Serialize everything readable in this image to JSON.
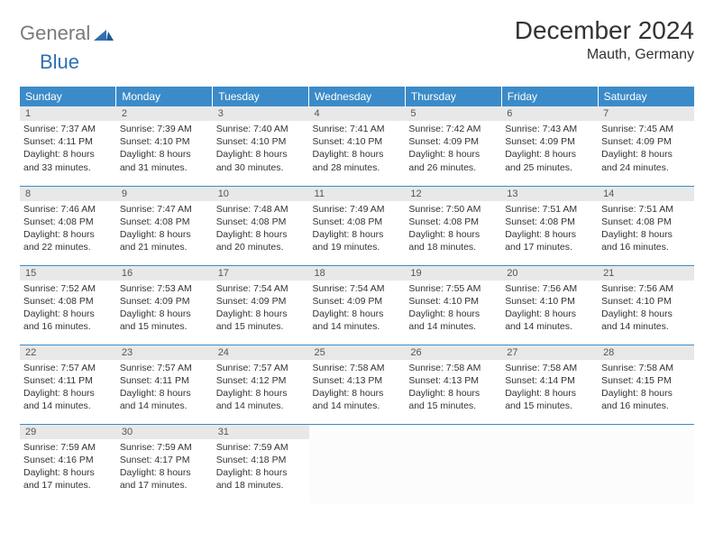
{
  "logo": {
    "gray": "General",
    "blue": "Blue"
  },
  "title": "December 2024",
  "location": "Mauth, Germany",
  "colors": {
    "header_bg": "#3b8bc9",
    "header_text": "#ffffff",
    "row_border": "#3b8bc9",
    "daynum_bg": "#e8e8e8",
    "logo_gray": "#7a7a7a",
    "logo_blue": "#2f6fb0"
  },
  "weekdays": [
    "Sunday",
    "Monday",
    "Tuesday",
    "Wednesday",
    "Thursday",
    "Friday",
    "Saturday"
  ],
  "weeks": [
    [
      {
        "n": 1,
        "sr": "7:37 AM",
        "ss": "4:11 PM",
        "dl": "8 hours and 33 minutes."
      },
      {
        "n": 2,
        "sr": "7:39 AM",
        "ss": "4:10 PM",
        "dl": "8 hours and 31 minutes."
      },
      {
        "n": 3,
        "sr": "7:40 AM",
        "ss": "4:10 PM",
        "dl": "8 hours and 30 minutes."
      },
      {
        "n": 4,
        "sr": "7:41 AM",
        "ss": "4:10 PM",
        "dl": "8 hours and 28 minutes."
      },
      {
        "n": 5,
        "sr": "7:42 AM",
        "ss": "4:09 PM",
        "dl": "8 hours and 26 minutes."
      },
      {
        "n": 6,
        "sr": "7:43 AM",
        "ss": "4:09 PM",
        "dl": "8 hours and 25 minutes."
      },
      {
        "n": 7,
        "sr": "7:45 AM",
        "ss": "4:09 PM",
        "dl": "8 hours and 24 minutes."
      }
    ],
    [
      {
        "n": 8,
        "sr": "7:46 AM",
        "ss": "4:08 PM",
        "dl": "8 hours and 22 minutes."
      },
      {
        "n": 9,
        "sr": "7:47 AM",
        "ss": "4:08 PM",
        "dl": "8 hours and 21 minutes."
      },
      {
        "n": 10,
        "sr": "7:48 AM",
        "ss": "4:08 PM",
        "dl": "8 hours and 20 minutes."
      },
      {
        "n": 11,
        "sr": "7:49 AM",
        "ss": "4:08 PM",
        "dl": "8 hours and 19 minutes."
      },
      {
        "n": 12,
        "sr": "7:50 AM",
        "ss": "4:08 PM",
        "dl": "8 hours and 18 minutes."
      },
      {
        "n": 13,
        "sr": "7:51 AM",
        "ss": "4:08 PM",
        "dl": "8 hours and 17 minutes."
      },
      {
        "n": 14,
        "sr": "7:51 AM",
        "ss": "4:08 PM",
        "dl": "8 hours and 16 minutes."
      }
    ],
    [
      {
        "n": 15,
        "sr": "7:52 AM",
        "ss": "4:08 PM",
        "dl": "8 hours and 16 minutes."
      },
      {
        "n": 16,
        "sr": "7:53 AM",
        "ss": "4:09 PM",
        "dl": "8 hours and 15 minutes."
      },
      {
        "n": 17,
        "sr": "7:54 AM",
        "ss": "4:09 PM",
        "dl": "8 hours and 15 minutes."
      },
      {
        "n": 18,
        "sr": "7:54 AM",
        "ss": "4:09 PM",
        "dl": "8 hours and 14 minutes."
      },
      {
        "n": 19,
        "sr": "7:55 AM",
        "ss": "4:10 PM",
        "dl": "8 hours and 14 minutes."
      },
      {
        "n": 20,
        "sr": "7:56 AM",
        "ss": "4:10 PM",
        "dl": "8 hours and 14 minutes."
      },
      {
        "n": 21,
        "sr": "7:56 AM",
        "ss": "4:10 PM",
        "dl": "8 hours and 14 minutes."
      }
    ],
    [
      {
        "n": 22,
        "sr": "7:57 AM",
        "ss": "4:11 PM",
        "dl": "8 hours and 14 minutes."
      },
      {
        "n": 23,
        "sr": "7:57 AM",
        "ss": "4:11 PM",
        "dl": "8 hours and 14 minutes."
      },
      {
        "n": 24,
        "sr": "7:57 AM",
        "ss": "4:12 PM",
        "dl": "8 hours and 14 minutes."
      },
      {
        "n": 25,
        "sr": "7:58 AM",
        "ss": "4:13 PM",
        "dl": "8 hours and 14 minutes."
      },
      {
        "n": 26,
        "sr": "7:58 AM",
        "ss": "4:13 PM",
        "dl": "8 hours and 15 minutes."
      },
      {
        "n": 27,
        "sr": "7:58 AM",
        "ss": "4:14 PM",
        "dl": "8 hours and 15 minutes."
      },
      {
        "n": 28,
        "sr": "7:58 AM",
        "ss": "4:15 PM",
        "dl": "8 hours and 16 minutes."
      }
    ],
    [
      {
        "n": 29,
        "sr": "7:59 AM",
        "ss": "4:16 PM",
        "dl": "8 hours and 17 minutes."
      },
      {
        "n": 30,
        "sr": "7:59 AM",
        "ss": "4:17 PM",
        "dl": "8 hours and 17 minutes."
      },
      {
        "n": 31,
        "sr": "7:59 AM",
        "ss": "4:18 PM",
        "dl": "8 hours and 18 minutes."
      },
      null,
      null,
      null,
      null
    ]
  ],
  "labels": {
    "sunrise": "Sunrise:",
    "sunset": "Sunset:",
    "daylight": "Daylight:"
  }
}
